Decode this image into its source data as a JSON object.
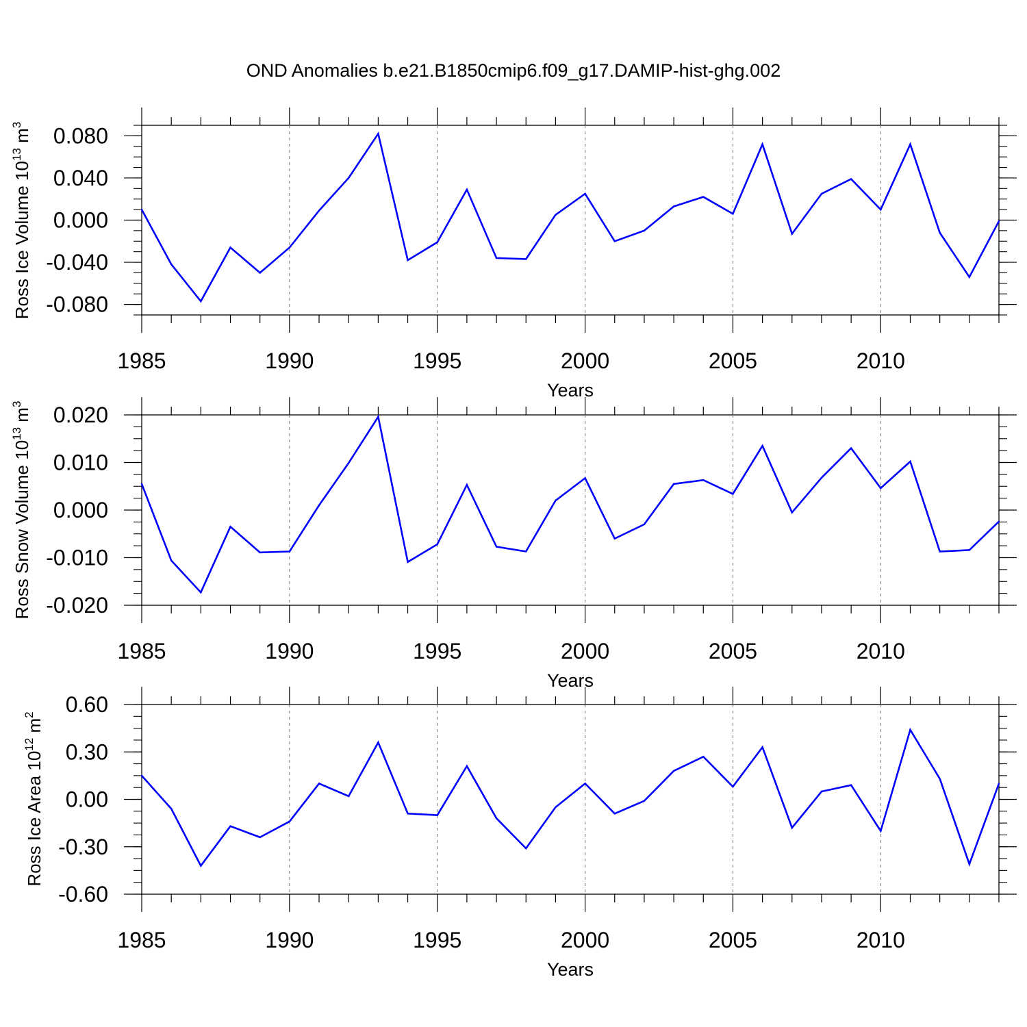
{
  "title": "OND Anomalies b.e21.B1850cmip6.f09_g17.DAMIP-hist-ghg.002",
  "line_color": "#0000ff",
  "chart_data": [
    {
      "type": "line",
      "ylabel": "Ross Ice Volume 10",
      "ylabel_exp": "13",
      "ylabel_unit": " m",
      "ylabel_unit_exp": "3",
      "xlabel": "Years",
      "ylim": [
        -0.09,
        0.09
      ],
      "yticks": [
        0.08,
        0.04,
        0.0,
        -0.04,
        -0.08
      ],
      "ytick_labels": [
        "0.080",
        "0.040",
        "0.000",
        "-0.040",
        "-0.080"
      ],
      "xlim": [
        1985,
        2014
      ],
      "xticks": [
        1985,
        1990,
        1995,
        2000,
        2005,
        2010
      ],
      "xtick_labels": [
        "1985",
        "1990",
        "1995",
        "2000",
        "2005",
        "2010"
      ],
      "x": [
        1985,
        1986,
        1987,
        1988,
        1989,
        1990,
        1991,
        1992,
        1993,
        1994,
        1995,
        1996,
        1997,
        1998,
        1999,
        2000,
        2001,
        2002,
        2003,
        2004,
        2005,
        2006,
        2007,
        2008,
        2009,
        2010,
        2011,
        2012,
        2013,
        2014
      ],
      "values": [
        0.01,
        -0.042,
        -0.077,
        -0.026,
        -0.05,
        -0.026,
        0.009,
        0.04,
        0.082,
        -0.038,
        -0.021,
        0.029,
        -0.036,
        -0.037,
        0.005,
        0.025,
        -0.02,
        -0.01,
        0.013,
        0.022,
        0.006,
        0.072,
        -0.013,
        0.025,
        0.039,
        0.01,
        0.072,
        -0.012,
        -0.054,
        -0.001
      ]
    },
    {
      "type": "line",
      "ylabel": "Ross Snow Volume 10",
      "ylabel_exp": "13",
      "ylabel_unit": " m",
      "ylabel_unit_exp": "3",
      "xlabel": "Years",
      "ylim": [
        -0.02,
        0.02
      ],
      "yticks": [
        0.02,
        0.01,
        0.0,
        -0.01,
        -0.02
      ],
      "ytick_labels": [
        "0.020",
        "0.010",
        "0.000",
        "-0.010",
        "-0.020"
      ],
      "xlim": [
        1985,
        2014
      ],
      "xticks": [
        1985,
        1990,
        1995,
        2000,
        2005,
        2010
      ],
      "xtick_labels": [
        "1985",
        "1990",
        "1995",
        "2000",
        "2005",
        "2010"
      ],
      "x": [
        1985,
        1986,
        1987,
        1988,
        1989,
        1990,
        1991,
        1992,
        1993,
        1994,
        1995,
        1996,
        1997,
        1998,
        1999,
        2000,
        2001,
        2002,
        2003,
        2004,
        2005,
        2006,
        2007,
        2008,
        2009,
        2010,
        2011,
        2012,
        2013,
        2014
      ],
      "values": [
        0.0055,
        -0.0106,
        -0.0173,
        -0.0035,
        -0.0089,
        -0.0087,
        0.001,
        0.0099,
        0.0196,
        -0.0109,
        -0.0072,
        0.0053,
        -0.0077,
        -0.0087,
        0.002,
        0.0067,
        -0.006,
        -0.003,
        0.0055,
        0.0063,
        0.0034,
        0.0135,
        -0.0005,
        0.0068,
        0.013,
        0.0046,
        0.0102,
        -0.0087,
        -0.0084,
        -0.0024
      ]
    },
    {
      "type": "line",
      "ylabel": "Ross Ice Area 10",
      "ylabel_exp": "12",
      "ylabel_unit": " m",
      "ylabel_unit_exp": "2",
      "xlabel": "Years",
      "ylim": [
        -0.6,
        0.6
      ],
      "yticks": [
        0.6,
        0.3,
        0.0,
        -0.3,
        -0.6
      ],
      "ytick_labels": [
        "0.60",
        "0.30",
        "0.00",
        "-0.30",
        "-0.60"
      ],
      "xlim": [
        1985,
        2014
      ],
      "xticks": [
        1985,
        1990,
        1995,
        2000,
        2005,
        2010
      ],
      "xtick_labels": [
        "1985",
        "1990",
        "1995",
        "2000",
        "2005",
        "2010"
      ],
      "x": [
        1985,
        1986,
        1987,
        1988,
        1989,
        1990,
        1991,
        1992,
        1993,
        1994,
        1995,
        1996,
        1997,
        1998,
        1999,
        2000,
        2001,
        2002,
        2003,
        2004,
        2005,
        2006,
        2007,
        2008,
        2009,
        2010,
        2011,
        2012,
        2013,
        2014
      ],
      "values": [
        0.15,
        -0.06,
        -0.42,
        -0.17,
        -0.24,
        -0.14,
        0.1,
        0.02,
        0.36,
        -0.09,
        -0.1,
        0.21,
        -0.12,
        -0.31,
        -0.05,
        0.1,
        -0.09,
        -0.01,
        0.18,
        0.27,
        0.08,
        0.33,
        -0.18,
        0.05,
        0.09,
        -0.2,
        0.44,
        0.13,
        -0.41,
        0.1
      ]
    }
  ]
}
